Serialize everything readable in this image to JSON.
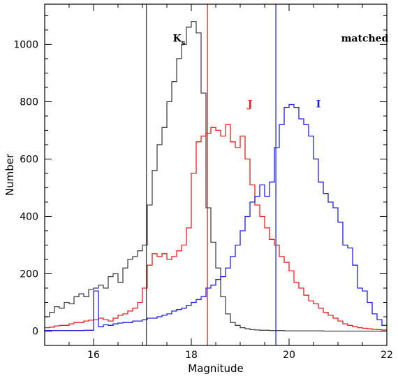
{
  "chart_data": {
    "type": "line",
    "step": true,
    "xlabel": "Magnitude",
    "ylabel": "Number",
    "xlim": [
      15,
      22
    ],
    "ylim": [
      -50,
      1140
    ],
    "xticks": [
      "16",
      "18",
      "20",
      "22"
    ],
    "yticks": [
      "0",
      "200",
      "400",
      "600",
      "800",
      "1000"
    ],
    "bin_width": 0.1,
    "x": [
      15.0,
      15.1,
      15.2,
      15.3,
      15.4,
      15.5,
      15.6,
      15.7,
      15.8,
      15.9,
      16.0,
      16.1,
      16.2,
      16.3,
      16.4,
      16.5,
      16.6,
      16.7,
      16.8,
      16.9,
      17.0,
      17.1,
      17.2,
      17.3,
      17.4,
      17.5,
      17.6,
      17.7,
      17.8,
      17.9,
      18.0,
      18.1,
      18.2,
      18.3,
      18.4,
      18.5,
      18.6,
      18.7,
      18.8,
      18.9,
      19.0,
      19.1,
      19.2,
      19.3,
      19.4,
      19.5,
      19.6,
      19.7,
      19.8,
      19.9,
      20.0,
      20.1,
      20.2,
      20.3,
      20.4,
      20.5,
      20.6,
      20.7,
      20.8,
      20.9,
      21.0,
      21.1,
      21.2,
      21.3,
      21.4,
      21.5,
      21.6,
      21.7,
      21.8,
      21.9
    ],
    "series": [
      {
        "name": "K",
        "color": "#444444",
        "values": [
          50,
          65,
          85,
          80,
          100,
          95,
          120,
          130,
          120,
          145,
          150,
          160,
          150,
          190,
          200,
          170,
          220,
          250,
          260,
          280,
          300,
          440,
          560,
          650,
          710,
          800,
          870,
          950,
          1000,
          1060,
          1080,
          1040,
          830,
          430,
          310,
          220,
          120,
          60,
          30,
          20,
          12,
          8,
          5,
          4,
          3,
          3,
          2,
          2,
          2,
          1,
          1,
          1,
          1,
          1,
          1,
          1,
          1,
          0,
          0,
          0,
          0,
          0,
          0,
          0,
          0,
          0,
          0,
          0,
          0,
          0
        ]
      },
      {
        "name": "J",
        "color": "#e82020",
        "values": [
          12,
          14,
          18,
          20,
          20,
          25,
          30,
          30,
          35,
          38,
          40,
          45,
          40,
          35,
          45,
          55,
          60,
          70,
          80,
          100,
          150,
          230,
          270,
          260,
          270,
          250,
          260,
          280,
          300,
          360,
          550,
          660,
          680,
          690,
          710,
          700,
          680,
          720,
          660,
          640,
          680,
          600,
          510,
          440,
          400,
          360,
          320,
          300,
          260,
          240,
          210,
          170,
          150,
          125,
          105,
          95,
          80,
          65,
          55,
          45,
          35,
          25,
          20,
          15,
          12,
          10,
          8,
          6,
          5,
          4
        ]
      },
      {
        "name": "I",
        "color": "#2020e0",
        "values": [
          2,
          2,
          2,
          2,
          2,
          2,
          2,
          2,
          3,
          3,
          140,
          15,
          22,
          20,
          25,
          28,
          30,
          30,
          35,
          35,
          40,
          45,
          45,
          50,
          55,
          60,
          70,
          75,
          80,
          90,
          100,
          110,
          120,
          150,
          160,
          180,
          190,
          220,
          260,
          300,
          350,
          400,
          450,
          470,
          510,
          470,
          520,
          640,
          720,
          780,
          790,
          780,
          740,
          720,
          680,
          600,
          520,
          480,
          450,
          430,
          380,
          300,
          290,
          230,
          150,
          140,
          100,
          60,
          40,
          20
        ]
      }
    ],
    "vlines": [
      {
        "x": 17.08,
        "color": "#444444"
      },
      {
        "x": 18.33,
        "color": "#e82020"
      },
      {
        "x": 19.73,
        "color": "#2020e0"
      }
    ],
    "annotations": [
      {
        "text": "K",
        "sub": "s",
        "color": "#000000",
        "x": 17.75,
        "y": 1010
      },
      {
        "text": "J",
        "color": "#e82020",
        "x": 19.2,
        "y": 780
      },
      {
        "text": "I",
        "color": "#2020e0",
        "x": 20.6,
        "y": 780
      },
      {
        "text": "matched",
        "color": "#000000",
        "x": 21.55,
        "y": 1010
      }
    ]
  }
}
